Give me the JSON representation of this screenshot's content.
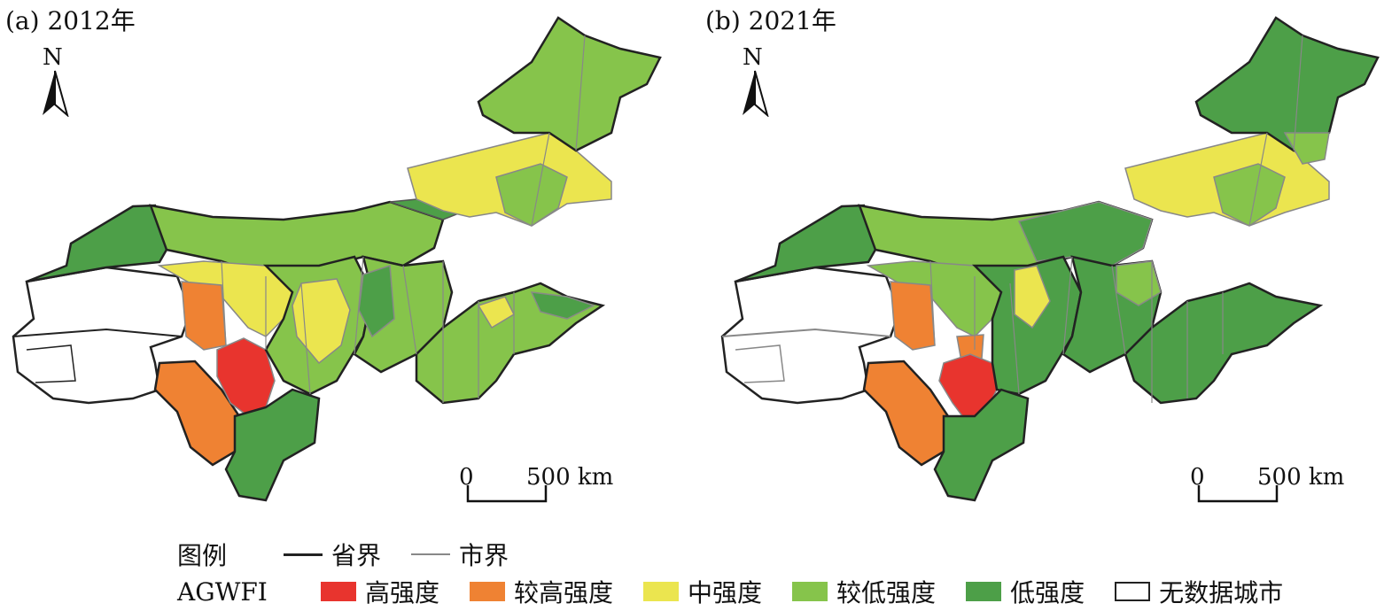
{
  "panels": [
    {
      "label": "(a) 2012年"
    },
    {
      "label": "(b) 2021年"
    }
  ],
  "north": "N",
  "scale": {
    "zero": "0",
    "end": "500 km"
  },
  "legend": {
    "title": "图例",
    "boundaries": [
      {
        "label": "省界",
        "color": "#222222",
        "kind": "province"
      },
      {
        "label": "市界",
        "color": "#888888",
        "kind": "city"
      }
    ],
    "index_label": "AGWFI",
    "classes": [
      {
        "label": "高强度",
        "color": "#e8342e"
      },
      {
        "label": "较高强度",
        "color": "#ef8233"
      },
      {
        "label": "中强度",
        "color": "#ebe54f"
      },
      {
        "label": "较低强度",
        "color": "#86c44b"
      },
      {
        "label": "低强度",
        "color": "#4d9f48"
      },
      {
        "label": "无数据城市",
        "color": "#ffffff"
      }
    ]
  }
}
